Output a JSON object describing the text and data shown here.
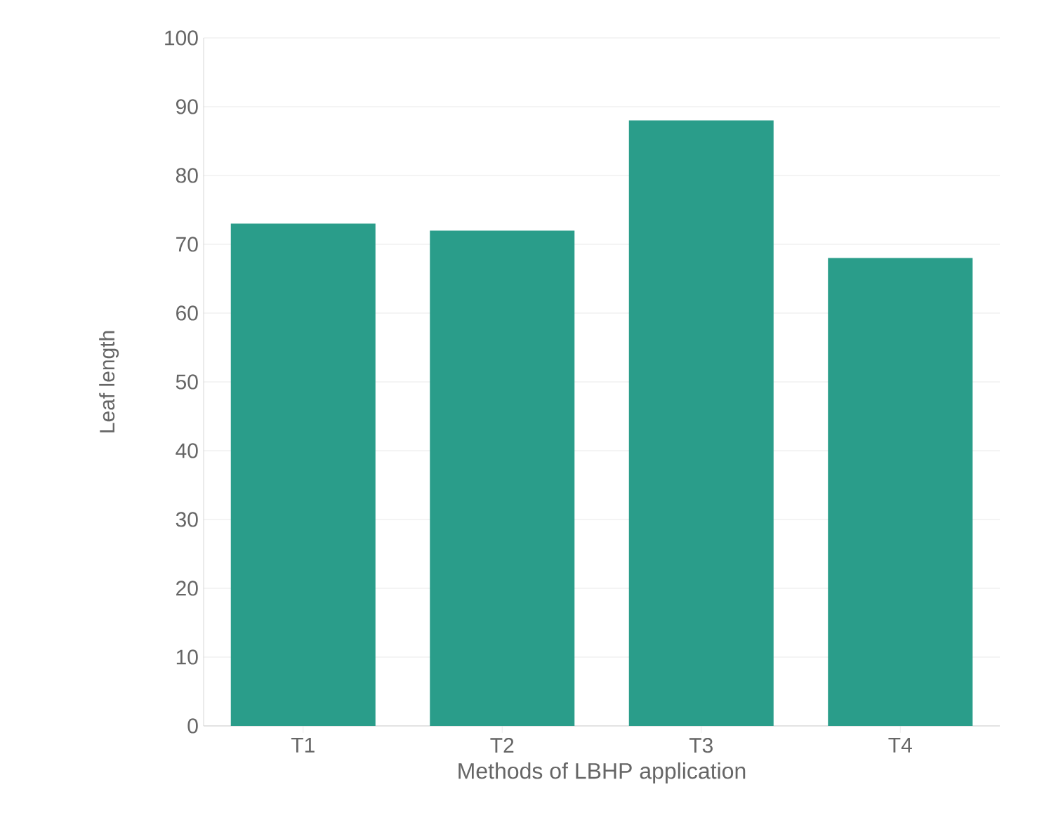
{
  "chart_data": {
    "type": "bar",
    "xlabel": "Methods of LBHP application",
    "ylabel": "Leaf length",
    "categories": [
      "T1",
      "T2",
      "T3",
      "T4"
    ],
    "values": [
      73,
      72,
      88,
      68
    ],
    "color": "#2a9d8a",
    "ylim": [
      0,
      100
    ],
    "yticks": [
      0,
      10,
      20,
      30,
      40,
      50,
      60,
      70,
      80,
      90,
      100
    ],
    "grid": "y"
  }
}
